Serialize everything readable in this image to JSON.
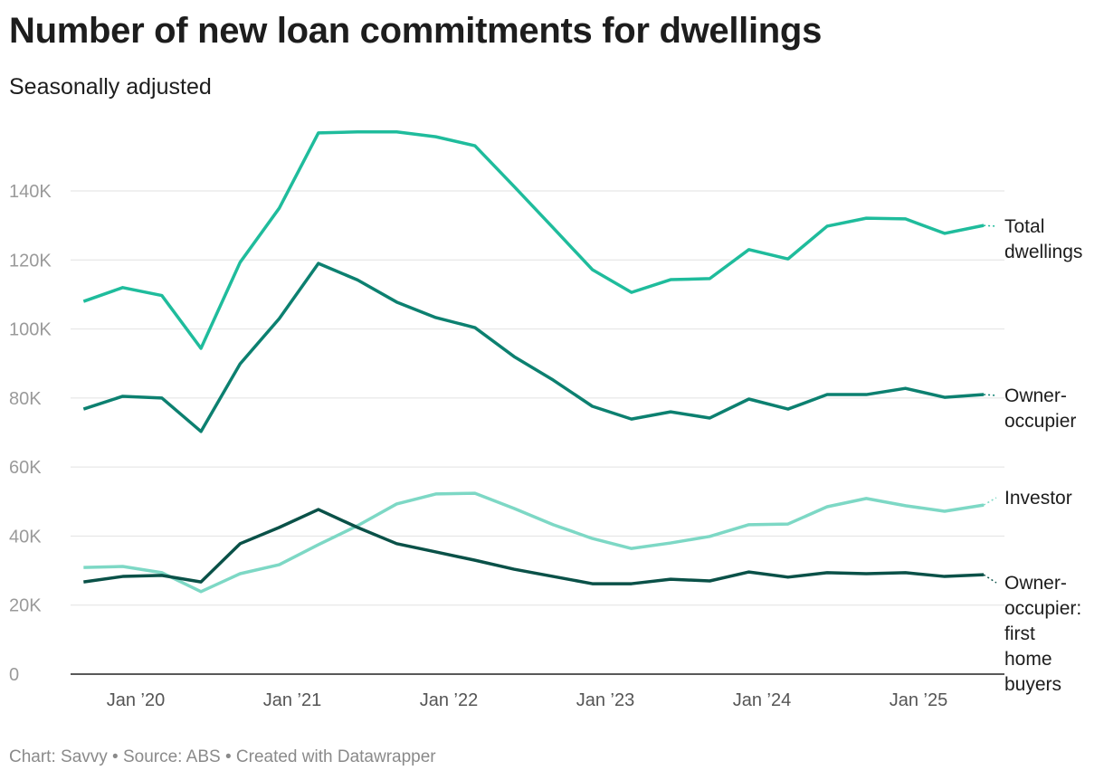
{
  "title": "Number of new loan commitments for dwellings",
  "subtitle": "Seasonally adjusted",
  "footer": "Chart: Savvy • Source: ABS • Created with Datawrapper",
  "chart_data": {
    "type": "line",
    "title": "Number of new loan commitments for dwellings",
    "subtitle": "Seasonally adjusted",
    "xlabel": "",
    "ylabel": "",
    "ylim": [
      0,
      160000
    ],
    "yticks": [
      0,
      20000,
      40000,
      60000,
      80000,
      100000,
      120000,
      140000
    ],
    "ytick_labels": [
      "0",
      "20K",
      "40K",
      "60K",
      "80K",
      "100K",
      "120K",
      "140K"
    ],
    "xtick_labels": [
      "Jan ’20",
      "Jan ’21",
      "Jan ’22",
      "Jan ’23",
      "Jan ’24",
      "Jan ’25"
    ],
    "grid": true,
    "legend": "direct labels at right",
    "x": [
      "2019-09",
      "2019-12",
      "2020-03",
      "2020-06",
      "2020-09",
      "2020-12",
      "2021-03",
      "2021-06",
      "2021-09",
      "2021-12",
      "2022-03",
      "2022-06",
      "2022-09",
      "2022-12",
      "2023-03",
      "2023-06",
      "2023-09",
      "2023-12",
      "2024-03",
      "2024-06",
      "2024-09",
      "2024-12",
      "2025-03",
      "2025-06"
    ],
    "series": [
      {
        "name": "Total dwellings",
        "color": "#1fbc9c",
        "values": [
          108000,
          112000,
          109700,
          94400,
          119300,
          135000,
          156800,
          157100,
          157100,
          155700,
          153100,
          141300,
          129300,
          117200,
          110600,
          114300,
          114600,
          123000,
          120300,
          129800,
          132100,
          131900,
          127700,
          130000
        ]
      },
      {
        "name": "Owner-occupier",
        "color": "#0c8070",
        "values": [
          76800,
          80500,
          80000,
          70300,
          89900,
          103000,
          119000,
          114200,
          107800,
          103300,
          100400,
          92000,
          85200,
          77600,
          73900,
          76000,
          74200,
          79700,
          76800,
          81000,
          81000,
          82800,
          80200,
          81000
        ]
      },
      {
        "name": "Investor",
        "color": "#7dd8c5",
        "values": [
          30900,
          31200,
          29400,
          23900,
          29100,
          31700,
          37500,
          43000,
          49300,
          52200,
          52400,
          48000,
          43300,
          39300,
          36400,
          38000,
          39900,
          43300,
          43500,
          48500,
          50900,
          48800,
          47200,
          49000
        ]
      },
      {
        "name": "Owner-occupier: first home buyers",
        "color": "#0a5148",
        "values": [
          26700,
          28300,
          28600,
          26700,
          37800,
          42500,
          47700,
          42500,
          37800,
          35400,
          33000,
          30400,
          28300,
          26200,
          26200,
          27500,
          27000,
          29600,
          28100,
          29400,
          29100,
          29400,
          28300,
          28800
        ]
      }
    ],
    "label_lines": [
      [
        "Total",
        "dwellings"
      ],
      [
        "Owner-",
        "occupier"
      ],
      [
        "Investor"
      ],
      [
        "Owner-",
        "occupier:",
        "first",
        "home",
        "buyers"
      ]
    ]
  }
}
